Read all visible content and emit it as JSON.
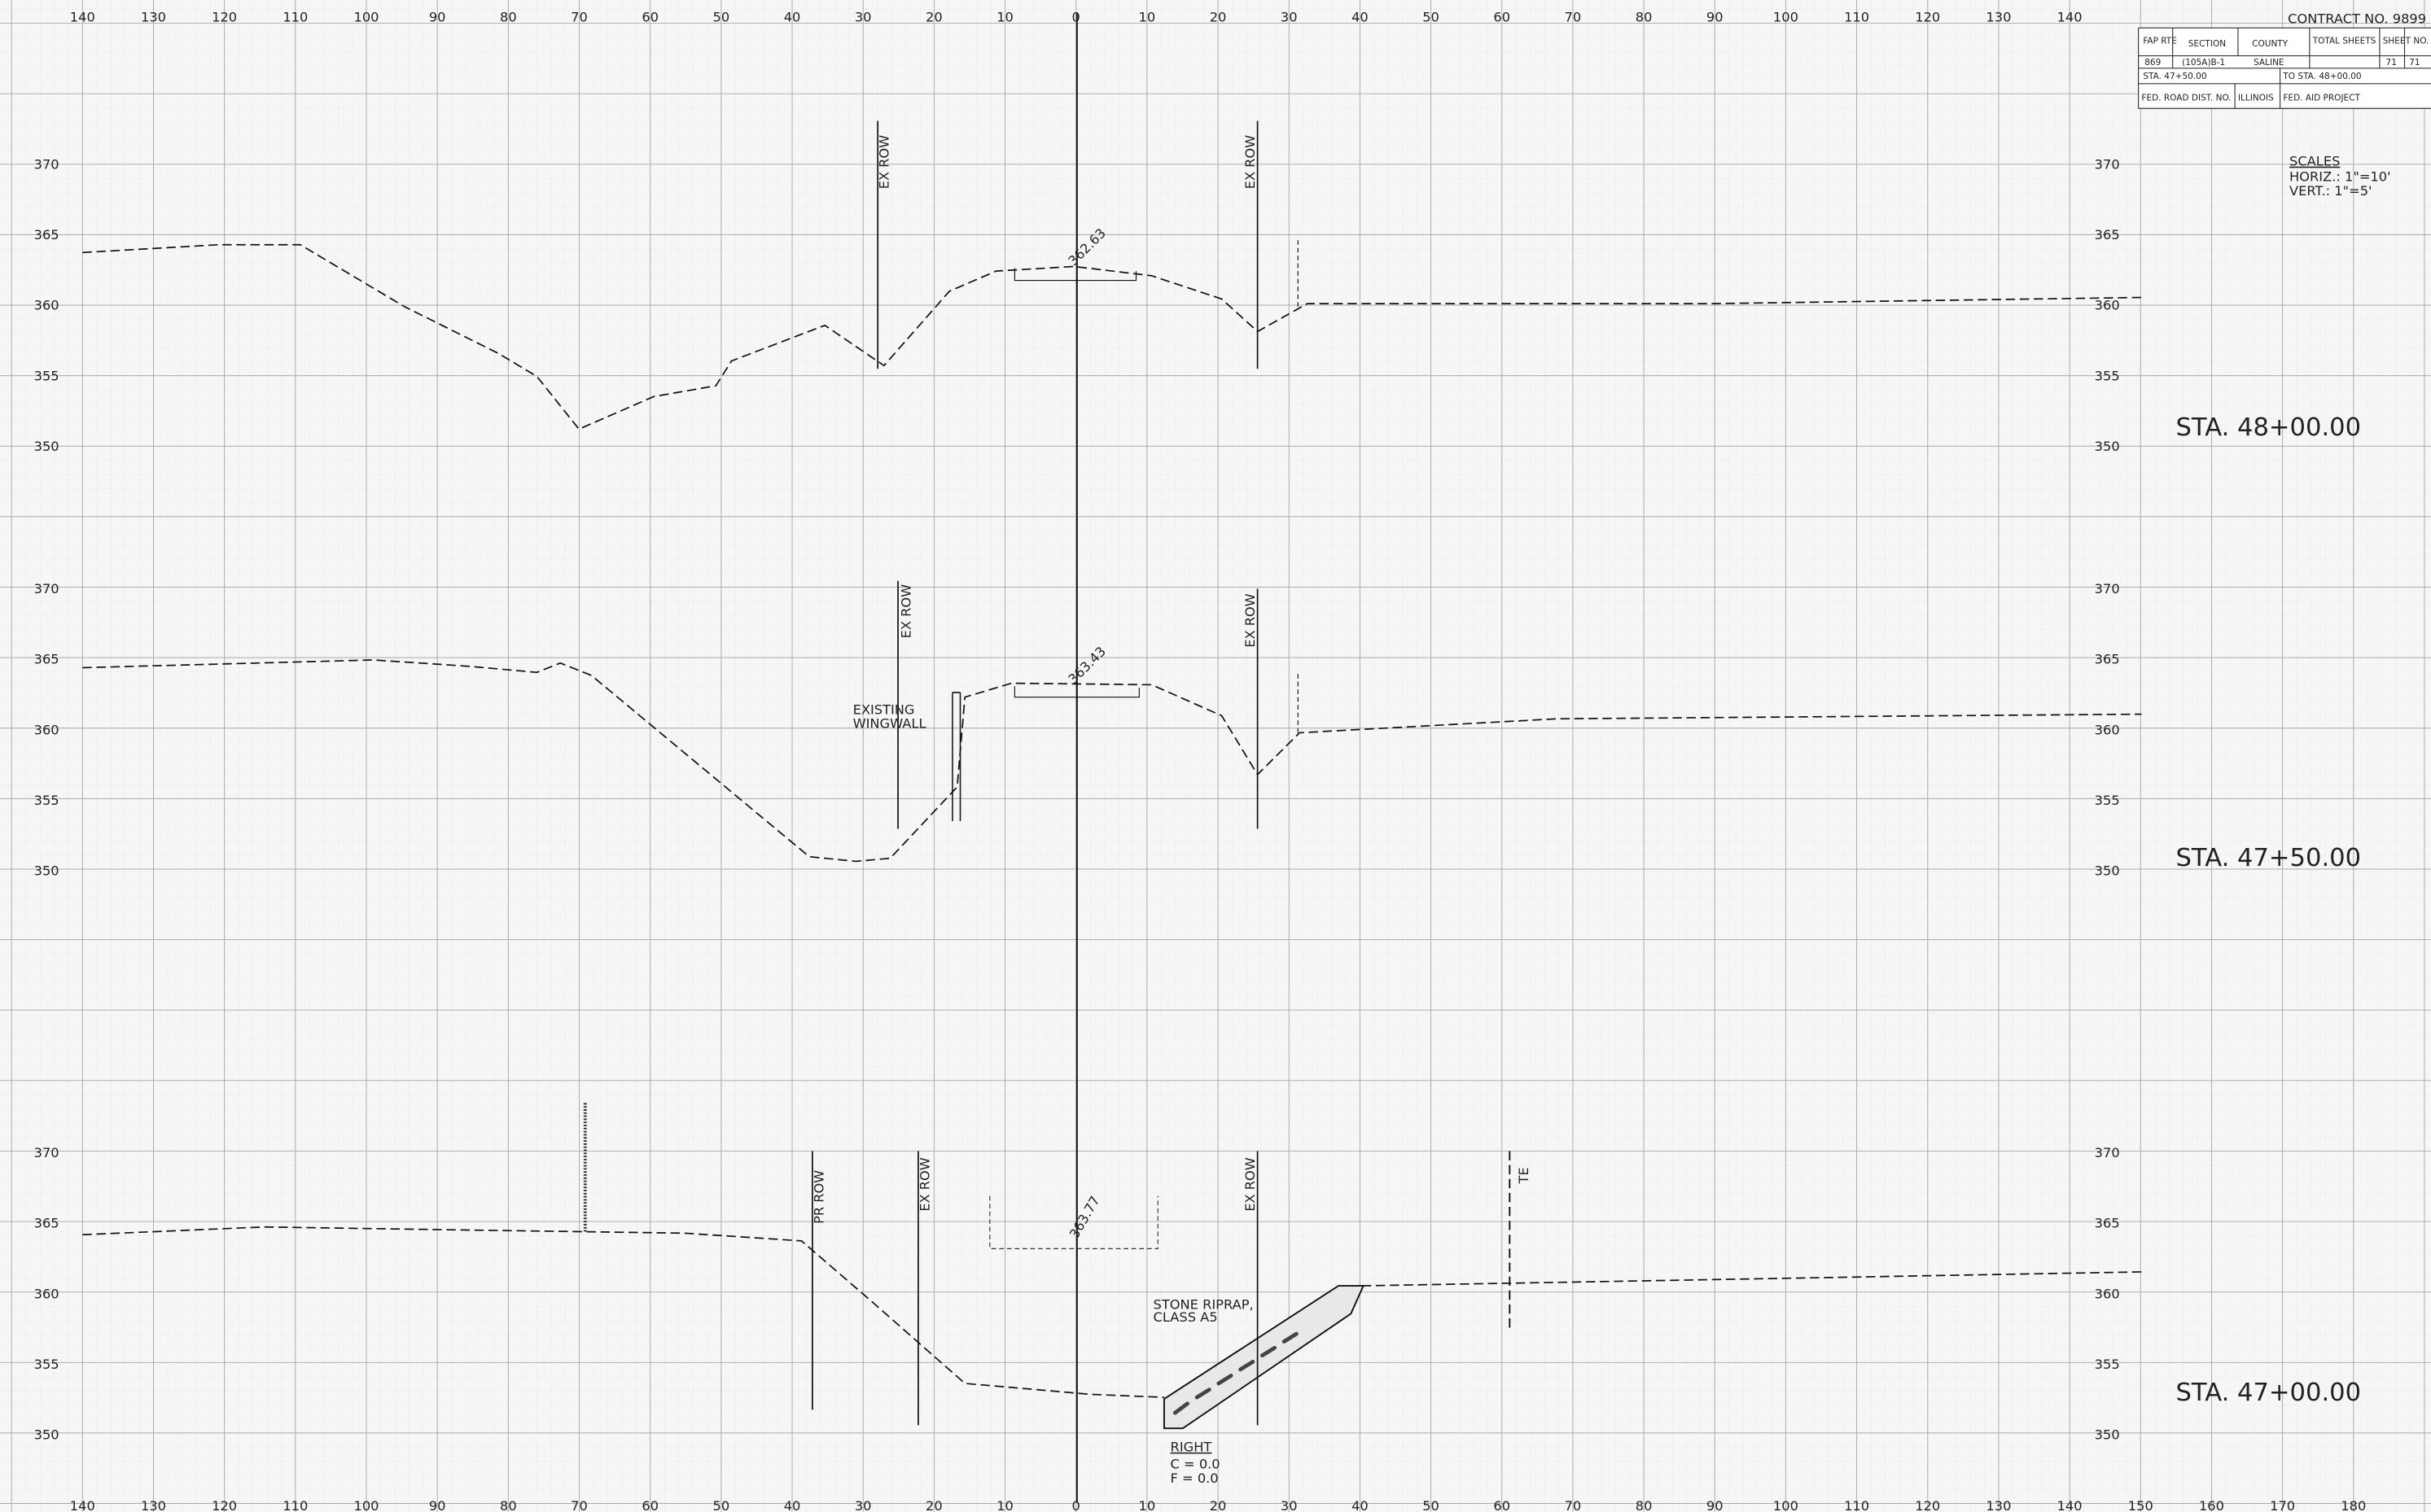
{
  "title_block": {
    "contract": "CONTRACT NO. 9899",
    "headers": [
      "FAP RTE",
      "SECTION",
      "COUNTY",
      "TOTAL SHEETS",
      "SHEET NO."
    ],
    "values": [
      "869",
      "(105A)B-1",
      "SALINE",
      "71",
      "71"
    ],
    "from_station": "STA. 47+50.00",
    "to_station": "TO STA. 48+00.00",
    "fed_road_dist": "FED. ROAD DIST. NO.",
    "state": "ILLINOIS",
    "fed_aid": "FED. AID PROJECT"
  },
  "scales": {
    "title": "SCALES",
    "horiz": "HORIZ.: 1\"=10'",
    "vert": "VERT.: 1\"=5'"
  },
  "top_offsets": [
    140,
    130,
    120,
    110,
    100,
    90,
    80,
    70,
    60,
    50,
    40,
    30,
    20,
    10,
    0,
    10,
    20,
    30,
    40,
    50,
    60,
    70,
    80,
    90,
    100,
    110,
    120,
    130,
    140
  ],
  "bottom_offsets": [
    140,
    130,
    120,
    110,
    100,
    90,
    80,
    70,
    60,
    50,
    40,
    30,
    20,
    10,
    0,
    10,
    20,
    30,
    40,
    50,
    60,
    70,
    80,
    90,
    100,
    110,
    120,
    130,
    140,
    150,
    160,
    170,
    180
  ],
  "sections": [
    {
      "station": "STA. 48+00.00",
      "elevations": [
        370,
        365,
        360,
        355,
        350
      ],
      "annotations": [
        "EX ROW",
        "EX ROW",
        "362.63"
      ]
    },
    {
      "station": "STA. 47+50.00",
      "elevations": [
        370,
        365,
        360,
        355,
        350
      ],
      "annotations": [
        "EX ROW",
        "EX ROW",
        "363.43",
        "EXISTING",
        "WINGWALL"
      ]
    },
    {
      "station": "STA. 47+00.00",
      "elevations": [
        370,
        365,
        360,
        355,
        350
      ],
      "annotations": [
        "PR ROW",
        "EX ROW",
        "EX ROW",
        "363.77",
        "STONE RIPRAP,",
        "CLASS A5",
        "TE",
        "RIGHT",
        "C = 0.0",
        "F = 0.0"
      ]
    }
  ]
}
